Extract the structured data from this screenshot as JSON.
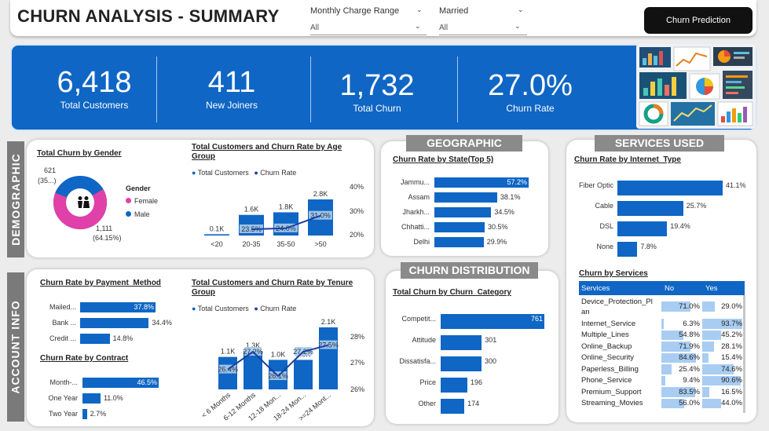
{
  "header": {
    "title": "CHURN ANALYSIS - SUMMARY",
    "slicers": [
      {
        "label": "Monthly Charge Range",
        "value": "All"
      },
      {
        "label": "Married",
        "value": "All"
      }
    ],
    "predict_button": "Churn Prediction"
  },
  "kpis": [
    {
      "value": "6,418",
      "label": "Total Customers"
    },
    {
      "value": "411",
      "label": "New Joiners"
    },
    {
      "value": "1,732",
      "label": "Total Churn"
    },
    {
      "value": "27.0%",
      "label": "Churn Rate"
    }
  ],
  "demographic": {
    "tab": "DEMOGRAPHIC",
    "gender": {
      "title": "Total Churn by Gender",
      "legend_title": "Gender",
      "legend": [
        "Female",
        "Male"
      ],
      "label_male": "621",
      "label_male_pct": "(35...)",
      "label_female": "1,111",
      "label_female_pct": "(64.15%)",
      "colors": {
        "female": "#e040a8",
        "male": "#0f66c4"
      },
      "female_fraction": 0.6415
    },
    "age": {
      "title_line1": "Total Customers and Churn Rate by Age",
      "title_line2": "Group",
      "legend": [
        "Total Customers",
        "Churn Rate"
      ],
      "categories": [
        "<20",
        "20-35",
        "35-50",
        ">50"
      ],
      "totals": [
        "0.1K",
        "1.6K",
        "1.8K",
        "2.8K"
      ],
      "rates": [
        "",
        "23.5%",
        "24.0%",
        "31.0%"
      ],
      "y_ticks": [
        "40%",
        "30%",
        "20%"
      ]
    }
  },
  "account": {
    "tab": "ACCOUNT INFO",
    "payment": {
      "title": "Churn Rate by Payment_Method",
      "items": [
        {
          "label": "Mailed...",
          "value": "37.8%",
          "rate": 37.8
        },
        {
          "label": "Bank ...",
          "value": "34.4%",
          "rate": 34.4
        },
        {
          "label": "Credit ...",
          "value": "14.8%",
          "rate": 14.8
        }
      ]
    },
    "contract": {
      "title": "Churn Rate by Contract",
      "items": [
        {
          "label": "Month-...",
          "value": "46.5%",
          "rate": 46.5
        },
        {
          "label": "One Year",
          "value": "11.0%",
          "rate": 11.0
        },
        {
          "label": "Two Year",
          "value": "2.7%",
          "rate": 2.7
        }
      ]
    },
    "tenure": {
      "title_line1": "Total Customers and Churn Rate by Tenure",
      "title_line2": "Group",
      "legend": [
        "Total Customers",
        "Churn Rate"
      ],
      "categories": [
        "< 6 Months",
        "6-12 Months",
        "12-18 Mon...",
        "18-24 Mon...",
        ">=24 Mont..."
      ],
      "totals": [
        "1.1K",
        "1.3K",
        "1.0K",
        "1.0K",
        "2.1K"
      ],
      "rates": [
        "26.4%",
        "27.2%",
        "26.1%",
        "27.2%",
        "27.5%"
      ],
      "y_ticks": [
        "28%",
        "27%",
        "26%"
      ]
    }
  },
  "geographic": {
    "header": "GEOGRAPHIC",
    "title": "Churn Rate by State(Top 5)",
    "items": [
      {
        "label": "Jammu...",
        "value": "57.2%",
        "rate": 57.2
      },
      {
        "label": "Assam",
        "value": "38.1%",
        "rate": 38.1
      },
      {
        "label": "Jharkh...",
        "value": "34.5%",
        "rate": 34.5
      },
      {
        "label": "Chhatti...",
        "value": "30.5%",
        "rate": 30.5
      },
      {
        "label": "Delhi",
        "value": "29.9%",
        "rate": 29.9
      }
    ]
  },
  "distribution": {
    "header": "CHURN DISTRIBUTION",
    "title": "Total Churn by Churn_Category",
    "items": [
      {
        "label": "Competit...",
        "value": "761",
        "count": 761
      },
      {
        "label": "Attitude",
        "value": "301",
        "count": 301
      },
      {
        "label": "Dissatisfa...",
        "value": "300",
        "count": 300
      },
      {
        "label": "Price",
        "value": "196",
        "count": 196
      },
      {
        "label": "Other",
        "value": "174",
        "count": 174
      }
    ]
  },
  "services": {
    "header": "SERVICES USED",
    "internet": {
      "title": "Churn Rate by Internet_Type",
      "items": [
        {
          "label": "Fiber Optic",
          "value": "41.1%",
          "rate": 41.1
        },
        {
          "label": "Cable",
          "value": "25.7%",
          "rate": 25.7
        },
        {
          "label": "DSL",
          "value": "19.4%",
          "rate": 19.4
        },
        {
          "label": "None",
          "value": "7.8%",
          "rate": 7.8
        }
      ]
    },
    "table": {
      "title": "Churn by Services",
      "columns": [
        "Services",
        "No",
        "Yes"
      ],
      "rows": [
        {
          "name": "Device_Protection_Pl",
          "name2": "an",
          "no": "71.0%",
          "yes": "29.0%",
          "no_v": 71.0,
          "yes_v": 29.0
        },
        {
          "name": "Internet_Service",
          "no": "6.3%",
          "yes": "93.7%",
          "no_v": 6.3,
          "yes_v": 93.7
        },
        {
          "name": "Multiple_Lines",
          "no": "54.8%",
          "yes": "45.2%",
          "no_v": 54.8,
          "yes_v": 45.2
        },
        {
          "name": "Online_Backup",
          "no": "71.9%",
          "yes": "28.1%",
          "no_v": 71.9,
          "yes_v": 28.1
        },
        {
          "name": "Online_Security",
          "no": "84.6%",
          "yes": "15.4%",
          "no_v": 84.6,
          "yes_v": 15.4
        },
        {
          "name": "Paperless_Billing",
          "no": "25.4%",
          "yes": "74.6%",
          "no_v": 25.4,
          "yes_v": 74.6
        },
        {
          "name": "Phone_Service",
          "no": "9.4%",
          "yes": "90.6%",
          "no_v": 9.4,
          "yes_v": 90.6
        },
        {
          "name": "Premium_Support",
          "no": "83.5%",
          "yes": "16.5%",
          "no_v": 83.5,
          "yes_v": 16.5
        },
        {
          "name": "Streaming_Movies",
          "no": "56.0%",
          "yes": "44.0%",
          "no_v": 56.0,
          "yes_v": 44.0
        }
      ]
    }
  }
}
